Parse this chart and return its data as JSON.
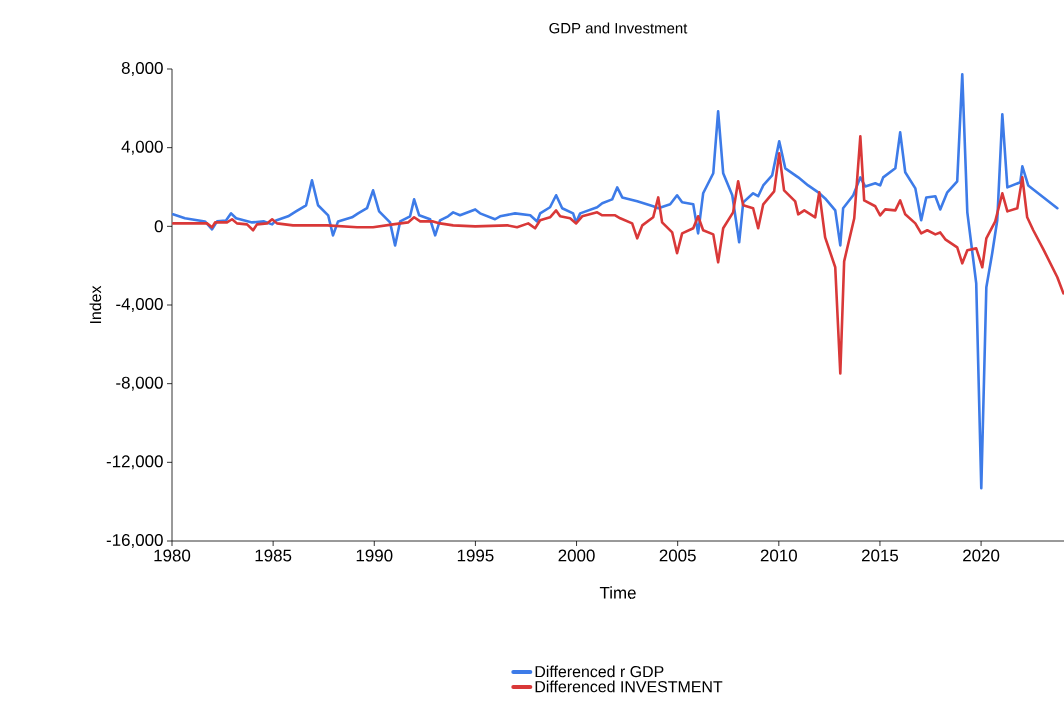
{
  "chart_data": {
    "type": "line",
    "title": "GDP and Investment",
    "xlabel": "Time",
    "ylabel": "Index",
    "xlim": [
      1980,
      2024.1
    ],
    "ylim": [
      -16000,
      8000
    ],
    "xticks": [
      1980,
      1985,
      1990,
      1995,
      2000,
      2005,
      2010,
      2015,
      2020
    ],
    "yticks": [
      {
        "value": -16000,
        "label": "-16,000"
      },
      {
        "value": -12000,
        "label": "-12,000"
      },
      {
        "value": -8000,
        "label": "-8,000"
      },
      {
        "value": -4000,
        "label": "-4,000"
      },
      {
        "value": 0,
        "label": "0"
      },
      {
        "value": 4000,
        "label": "4,000"
      },
      {
        "value": 8000,
        "label": "8,000"
      }
    ],
    "grid": false,
    "legend": "bottom",
    "marker": "none",
    "line_style": "solid",
    "series": [
      {
        "name": "Differenced r GDP",
        "color": "#3d7be8",
        "x": [
          1980.05,
          1980.64,
          1981.63,
          1981.98,
          1982.23,
          1982.67,
          1982.92,
          1983.17,
          1983.96,
          1984.55,
          1984.95,
          1985.14,
          1985.74,
          1986.13,
          1986.63,
          1986.92,
          1987.22,
          1987.72,
          1987.96,
          1988.21,
          1988.9,
          1989.2,
          1989.64,
          1989.94,
          1990.24,
          1990.78,
          1991.03,
          1991.28,
          1991.77,
          1991.97,
          1992.22,
          1992.76,
          1993.01,
          1993.25,
          1993.65,
          1993.9,
          1994.24,
          1994.99,
          1995.23,
          1995.97,
          1996.22,
          1996.96,
          1997.71,
          1998.05,
          1998.2,
          1998.69,
          1998.99,
          1999.29,
          1999.83,
          1999.98,
          2000.18,
          2001.02,
          2001.27,
          2001.76,
          2002.01,
          2002.26,
          2003.0,
          2003.79,
          2004.04,
          2004.63,
          2004.97,
          2005.22,
          2005.77,
          2006.01,
          2006.26,
          2006.76,
          2007.0,
          2007.25,
          2007.7,
          2008.04,
          2008.24,
          2008.73,
          2008.98,
          2009.23,
          2009.67,
          2010.02,
          2010.32,
          2010.96,
          2011.45,
          2011.95,
          2012.29,
          2012.79,
          2013.04,
          2013.18,
          2013.68,
          2014.03,
          2014.27,
          2014.77,
          2015.01,
          2015.16,
          2015.76,
          2016.0,
          2016.25,
          2016.75,
          2017.04,
          2017.29,
          2017.74,
          2017.98,
          2018.33,
          2018.82,
          2019.07,
          2019.32,
          2019.76,
          2020.01,
          2020.26,
          2020.55,
          2020.8,
          2021.05,
          2021.3,
          2021.94,
          2022.04,
          2022.33,
          2023.77
        ],
        "values": [
          610,
          410,
          250,
          -150,
          250,
          300,
          660,
          410,
          200,
          250,
          100,
          300,
          510,
          760,
          1070,
          2340,
          1070,
          560,
          -460,
          250,
          460,
          660,
          920,
          1830,
          760,
          200,
          -970,
          250,
          510,
          1370,
          560,
          360,
          -460,
          300,
          510,
          710,
          560,
          860,
          660,
          360,
          510,
          660,
          560,
          250,
          660,
          970,
          1580,
          920,
          660,
          200,
          660,
          970,
          1170,
          1370,
          1980,
          1470,
          1270,
          1020,
          920,
          1120,
          1580,
          1220,
          1120,
          -360,
          1680,
          2700,
          5850,
          2700,
          1580,
          -810,
          1220,
          1680,
          1530,
          2080,
          2590,
          4320,
          2950,
          2490,
          2080,
          1730,
          1420,
          810,
          -970,
          920,
          1580,
          2490,
          2030,
          2190,
          2080,
          2490,
          2950,
          4780,
          2750,
          1930,
          310,
          1470,
          1530,
          860,
          1730,
          2290,
          7730,
          710,
          -2900,
          -13320,
          -3100,
          -1370,
          310,
          5700,
          1980,
          2240,
          3050,
          2080,
          920
        ]
      },
      {
        "name": "Differenced INVESTMENT",
        "color": "#d93838",
        "x": [
          1980.05,
          1981.73,
          1981.98,
          1982.13,
          1982.72,
          1982.97,
          1983.21,
          1983.71,
          1984.01,
          1984.2,
          1984.7,
          1984.95,
          1985.19,
          1985.98,
          1987.67,
          1989.15,
          1989.94,
          1990.93,
          1991.67,
          1991.97,
          1992.27,
          1992.91,
          1993.25,
          1993.9,
          1994.99,
          1996.57,
          1997.06,
          1997.61,
          1997.95,
          1998.2,
          1998.69,
          1998.99,
          1999.19,
          1999.68,
          1999.98,
          2000.28,
          2001.02,
          2001.27,
          2001.91,
          2002.16,
          2002.75,
          2003.0,
          2003.25,
          2003.79,
          2004.04,
          2004.23,
          2004.73,
          2004.97,
          2005.22,
          2005.77,
          2006.01,
          2006.26,
          2006.76,
          2007.0,
          2007.25,
          2007.74,
          2007.99,
          2008.24,
          2008.73,
          2008.98,
          2009.23,
          2009.77,
          2010.02,
          2010.26,
          2010.81,
          2010.96,
          2011.26,
          2011.8,
          2012.0,
          2012.29,
          2012.79,
          2013.04,
          2013.23,
          2013.73,
          2014.03,
          2014.22,
          2014.77,
          2015.01,
          2015.26,
          2015.76,
          2016.0,
          2016.25,
          2016.75,
          2017.04,
          2017.34,
          2017.74,
          2017.98,
          2018.23,
          2018.82,
          2019.07,
          2019.32,
          2019.76,
          2020.06,
          2020.26,
          2020.7,
          2021.05,
          2021.3,
          2021.79,
          2022.04,
          2022.28,
          2022.58,
          2023.08,
          2023.77,
          2024.07
        ],
        "values": [
          150,
          150,
          -50,
          200,
          200,
          360,
          150,
          100,
          -200,
          100,
          150,
          360,
          150,
          50,
          50,
          -50,
          -50,
          100,
          200,
          460,
          250,
          250,
          150,
          50,
          0,
          50,
          -50,
          150,
          -100,
          310,
          460,
          810,
          510,
          410,
          150,
          510,
          710,
          560,
          560,
          410,
          150,
          -610,
          50,
          460,
          1470,
          200,
          -310,
          -1370,
          -360,
          -100,
          510,
          -200,
          -410,
          -1830,
          -100,
          710,
          2290,
          1070,
          920,
          -100,
          1120,
          1780,
          3710,
          1830,
          1270,
          610,
          810,
          460,
          1730,
          -560,
          -2080,
          -7480,
          -1780,
          410,
          4580,
          1320,
          1020,
          560,
          860,
          810,
          1320,
          610,
          150,
          -360,
          -200,
          -410,
          -310,
          -660,
          -1070,
          -1880,
          -1220,
          -1120,
          -2080,
          -610,
          250,
          1680,
          760,
          920,
          2490,
          460,
          -200,
          -1170,
          -2590,
          -3410
        ]
      }
    ]
  }
}
